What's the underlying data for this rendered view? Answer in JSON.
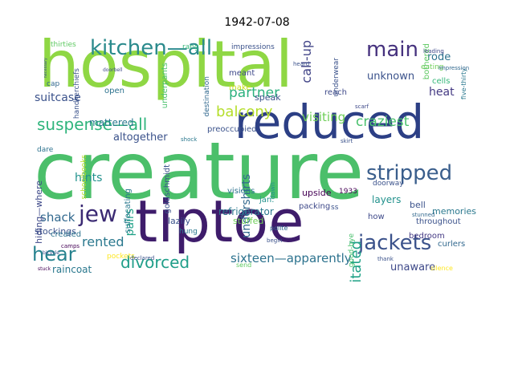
{
  "title": "1942-07-08",
  "palette": [
    "#440154",
    "#3b528b",
    "#21918c",
    "#5ec962",
    "#b5de2b",
    "#fde725"
  ],
  "words": [
    {
      "text": "creature",
      "color": "#4bbf6a"
    },
    {
      "text": "hospital",
      "color": "#8fd744"
    },
    {
      "text": "tiptoe",
      "color": "#3e1c6b"
    },
    {
      "text": "reduced",
      "color": "#2c3f85"
    },
    {
      "text": "kitchen—all",
      "color": "#2a8a8c"
    },
    {
      "text": "suspense—all",
      "color": "#2fb47c"
    },
    {
      "text": "stripped",
      "color": "#3a5e8c"
    },
    {
      "text": "jackets",
      "color": "#3b528b"
    },
    {
      "text": "main",
      "color": "#46327e"
    },
    {
      "text": "jew",
      "color": "#3b2a73"
    },
    {
      "text": "hear",
      "color": "#26828e"
    },
    {
      "text": "divorced",
      "color": "#1f9e89"
    },
    {
      "text": "partner",
      "color": "#2cb17e"
    },
    {
      "text": "balcony",
      "color": "#b5de2b"
    },
    {
      "text": "rented",
      "color": "#2a788e"
    },
    {
      "text": "shack",
      "color": "#31688e"
    },
    {
      "text": "sixteen—apparently",
      "color": "#2c728e"
    },
    {
      "text": "visiting",
      "color": "#6ece58"
    },
    {
      "text": "craziest",
      "color": "#4ac16d"
    },
    {
      "text": "refrigerator",
      "color": "#2a788e"
    },
    {
      "text": "agitated",
      "color": "#1fa187"
    },
    {
      "text": "unaware",
      "color": "#3e4989"
    },
    {
      "text": "call-up",
      "color": "#414487"
    },
    {
      "text": "unknown",
      "color": "#3b528b"
    },
    {
      "text": "rode",
      "color": "#2c728e"
    },
    {
      "text": "heat",
      "color": "#443983"
    },
    {
      "text": "cells",
      "color": "#35b779"
    },
    {
      "text": "suitcase",
      "color": "#3b528b"
    },
    {
      "text": "mattered",
      "color": "#2a788e"
    },
    {
      "text": "altogether",
      "color": "#3b528b"
    },
    {
      "text": "hints",
      "color": "#21918c"
    },
    {
      "text": "pairs",
      "color": "#1fa187"
    },
    {
      "text": "raincoat",
      "color": "#2a788e"
    },
    {
      "text": "stockings",
      "color": "#3b528b"
    },
    {
      "text": "hiding—where",
      "color": "#3e4989"
    },
    {
      "text": "created",
      "color": "#2c728e"
    },
    {
      "text": "undershirts",
      "color": "#31688e"
    },
    {
      "text": "stuffed",
      "color": "#6ece58"
    },
    {
      "text": "lazily",
      "color": "#3b528b"
    },
    {
      "text": "hung",
      "color": "#2a788e"
    },
    {
      "text": "layers",
      "color": "#21918c"
    },
    {
      "text": "bell",
      "color": "#3b528b"
    },
    {
      "text": "bedroom",
      "color": "#443983"
    },
    {
      "text": "curlers",
      "color": "#31688e"
    },
    {
      "text": "memories",
      "color": "#2a788e"
    },
    {
      "text": "throughout",
      "color": "#3b528b"
    },
    {
      "text": "good-bye",
      "color": "#4ac16d"
    },
    {
      "text": "upside",
      "color": "#440154"
    },
    {
      "text": "packing",
      "color": "#3e4989"
    },
    {
      "text": "1933",
      "color": "#440154"
    },
    {
      "text": "ss",
      "color": "#3b528b"
    },
    {
      "text": "visions",
      "color": "#2c728e"
    },
    {
      "text": "jan.",
      "color": "#21918c"
    },
    {
      "text": "speak",
      "color": "#3b528b"
    },
    {
      "text": "make",
      "color": "#c8e020"
    },
    {
      "text": "meant",
      "color": "#3e4989"
    },
    {
      "text": "open",
      "color": "#2c728e"
    },
    {
      "text": "underpants",
      "color": "#4ac16d"
    },
    {
      "text": "handkerchiefs",
      "color": "#3b528b"
    },
    {
      "text": "cap",
      "color": "#31688e"
    },
    {
      "text": "thirties",
      "color": "#5ec962"
    },
    {
      "text": "impressions",
      "color": "#3b528b"
    },
    {
      "text": "reach",
      "color": "#3e4989"
    },
    {
      "text": "eating",
      "color": "#6ece58"
    },
    {
      "text": "bothered",
      "color": "#5ec962"
    },
    {
      "text": "five-thirty",
      "color": "#2a788e"
    },
    {
      "text": "preoccupied",
      "color": "#3b528b"
    },
    {
      "text": "goldschmidt",
      "color": "#3b528b"
    },
    {
      "text": "suffocating",
      "color": "#2a788e"
    },
    {
      "text": "schoolbooks",
      "color": "#b5de2b"
    },
    {
      "text": "destination",
      "color": "#31688e"
    },
    {
      "text": "how",
      "color": "#3e4989"
    },
    {
      "text": "doorway",
      "color": "#3b528b"
    },
    {
      "text": "dare",
      "color": "#2c728e"
    },
    {
      "text": "rang",
      "color": "#35b779"
    },
    {
      "text": "underwear",
      "color": "#3b528b"
    },
    {
      "text": "pockets",
      "color": "#fde725"
    },
    {
      "text": "send",
      "color": "#5ec962"
    },
    {
      "text": "begin",
      "color": "#3b528b"
    },
    {
      "text": "polite",
      "color": "#31688e"
    },
    {
      "text": "skirt",
      "color": "#3b528b"
    },
    {
      "text": "scarf",
      "color": "#3e4989"
    },
    {
      "text": "dawn",
      "color": "#21918c"
    },
    {
      "text": "declared",
      "color": "#3b528b"
    },
    {
      "text": "camps",
      "color": "#440154"
    },
    {
      "text": "stunned",
      "color": "#31688e"
    },
    {
      "text": "silence",
      "color": "#fde725"
    },
    {
      "text": "thank",
      "color": "#3b528b"
    },
    {
      "text": "shock",
      "color": "#2a788e"
    },
    {
      "text": "heard",
      "color": "#3b528b"
    },
    {
      "text": "leading",
      "color": "#3e4989"
    },
    {
      "text": "impression",
      "color": "#31688e"
    },
    {
      "text": "bicycle",
      "color": "#3b528b"
    },
    {
      "text": "stuck",
      "color": "#440154"
    },
    {
      "text": "doorbell",
      "color": "#3e4989"
    },
    {
      "text": "necessary",
      "color": "#3b528b"
    }
  ]
}
